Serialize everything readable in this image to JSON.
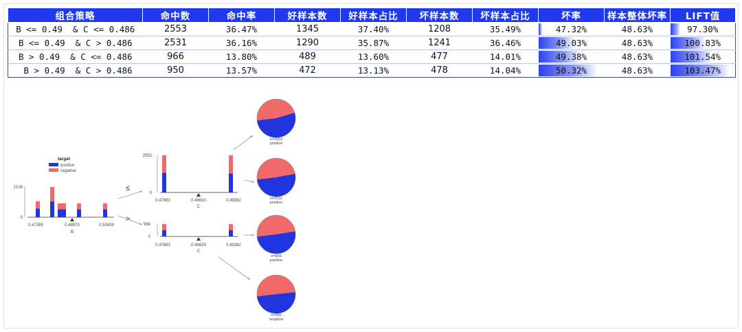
{
  "table": {
    "headers": [
      "组合策略",
      "命中数",
      "命中率",
      "好样本数",
      "好样本占比",
      "坏样本数",
      "坏样本占比",
      "坏率",
      "样本整体坏率",
      "LIFT值"
    ],
    "rows": [
      {
        "strategy": "B <= 0.49  & C <= 0.486",
        "hits": "2553",
        "hit_rate": "36.47%",
        "good": "1345",
        "good_pct": "37.40%",
        "bad": "1208",
        "bad_pct": "35.49%",
        "bad_rate": "47.32%",
        "overall_bad_rate": "48.63%",
        "lift": "97.30%",
        "bad_rate_level": 0.06,
        "lift_level": 0.15
      },
      {
        "strategy": "B <= 0.49  & C > 0.486",
        "hits": "2531",
        "hit_rate": "36.16%",
        "good": "1290",
        "good_pct": "35.87%",
        "bad": "1241",
        "bad_pct": "36.46%",
        "bad_rate": "49.03%",
        "overall_bad_rate": "48.63%",
        "lift": "100.83%",
        "bad_rate_level": 0.55,
        "lift_level": 0.55
      },
      {
        "strategy": "B > 0.49  & C <= 0.486",
        "hits": "966",
        "hit_rate": "13.80%",
        "good": "489",
        "good_pct": "13.60%",
        "bad": "477",
        "bad_pct": "14.01%",
        "bad_rate": "49.38%",
        "overall_bad_rate": "48.63%",
        "lift": "101.54%",
        "bad_rate_level": 0.65,
        "lift_level": 0.65
      },
      {
        "strategy": " B > 0.49  & C > 0.486",
        "hits": "950",
        "hit_rate": "13.57%",
        "good": "472",
        "good_pct": "13.13%",
        "bad": "478",
        "bad_pct": "14.04%",
        "bad_rate": "50.32%",
        "overall_bad_rate": "48.63%",
        "lift": "103.47%",
        "bad_rate_level": 0.9,
        "lift_level": 0.92
      }
    ]
  },
  "chart_data": {
    "type": "decision-tree",
    "legend": {
      "title": "target",
      "entries": [
        {
          "name": "positive",
          "color": "#2034e0"
        },
        {
          "name": "negative",
          "color": "#f06a6a"
        }
      ]
    },
    "root": {
      "feature": "B",
      "ymax": "2109",
      "ticks": [
        "0.47395",
        "0.48970",
        "0.50439"
      ],
      "split": "0.48970",
      "bars": [
        {
          "pos": 0.29,
          "neg": 0.24
        },
        {
          "pos": 0.52,
          "neg": 0.48
        },
        {
          "pos": 0.26,
          "neg": 0.2
        },
        {
          "pos": 0.26,
          "neg": 0.2
        },
        {
          "pos": 0.26,
          "neg": 0.2
        },
        {
          "pos": 0.26,
          "neg": 0.2
        }
      ]
    },
    "branches": {
      "left_symbol": "≤",
      "right_symbol": ">"
    },
    "left_node": {
      "feature": "C",
      "ymax": "2553",
      "ticks": [
        "0.47883",
        "0.48633",
        "0.49382"
      ],
      "split": "0.48633",
      "bars": [
        {
          "pos": 0.53,
          "neg": 0.47
        },
        {
          "pos": 0.51,
          "neg": 0.49
        }
      ]
    },
    "right_node": {
      "feature": "C",
      "ymax": "966",
      "ticks": [
        "0.47883",
        "0.48633",
        "0.49382"
      ],
      "split": "0.48633",
      "bars": [
        {
          "pos": 0.51,
          "neg": 0.49
        },
        {
          "pos": 0.5,
          "neg": 0.5
        }
      ]
    },
    "leaves": [
      {
        "n": "n=2553",
        "label": "positive",
        "positive_fraction": 0.527
      },
      {
        "n": "n=2531",
        "label": "positive",
        "positive_fraction": 0.51
      },
      {
        "n": "n=966",
        "label": "positive",
        "positive_fraction": 0.506
      },
      {
        "n": "n=950",
        "label": "negative",
        "positive_fraction": 0.497
      }
    ]
  }
}
